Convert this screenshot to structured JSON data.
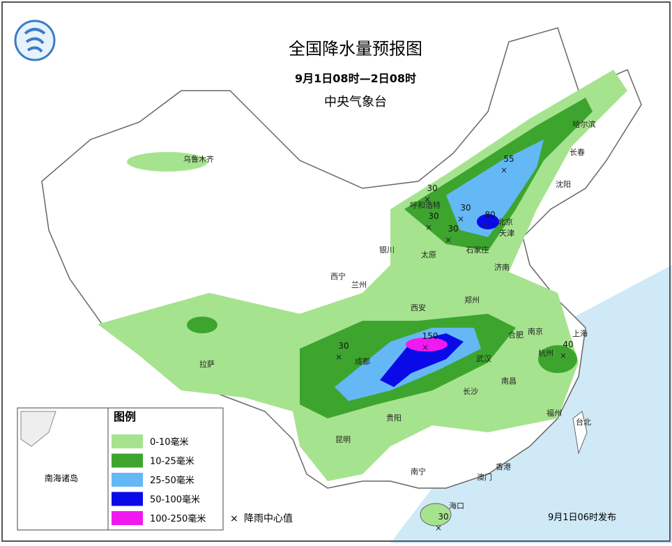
{
  "header": {
    "title": "全国降水量预报图",
    "period": "9月1日08时—2日08时",
    "issuer": "中央气象台"
  },
  "cities": [
    "乌鲁木齐",
    "哈尔滨",
    "长春",
    "沈阳",
    "呼和浩特",
    "北京",
    "天津",
    "石家庄",
    "太原",
    "银川",
    "济南",
    "西宁",
    "兰州",
    "郑州",
    "西安",
    "合肥",
    "南京",
    "上海",
    "成都",
    "武汉",
    "杭州",
    "拉萨",
    "长沙",
    "南昌",
    "贵阳",
    "福州",
    "台北",
    "昆明",
    "南宁",
    "香港",
    "澳门",
    "海口"
  ],
  "rain_centers": [
    30,
    55,
    30,
    30,
    80,
    30,
    30,
    150,
    40,
    30
  ],
  "legend": {
    "title": "图例",
    "items": [
      {
        "label": "0-10毫米",
        "color": "#a6e38f"
      },
      {
        "label": "10-25毫米",
        "color": "#3da52e"
      },
      {
        "label": "25-50毫米",
        "color": "#64b8f5"
      },
      {
        "label": "50-100毫米",
        "color": "#0a0ae8"
      },
      {
        "label": "100-250毫米",
        "color": "#f01af0"
      }
    ],
    "marker_label": "降雨中心值"
  },
  "inset_label": "南海诸岛",
  "footer": "9月1日06时发布"
}
